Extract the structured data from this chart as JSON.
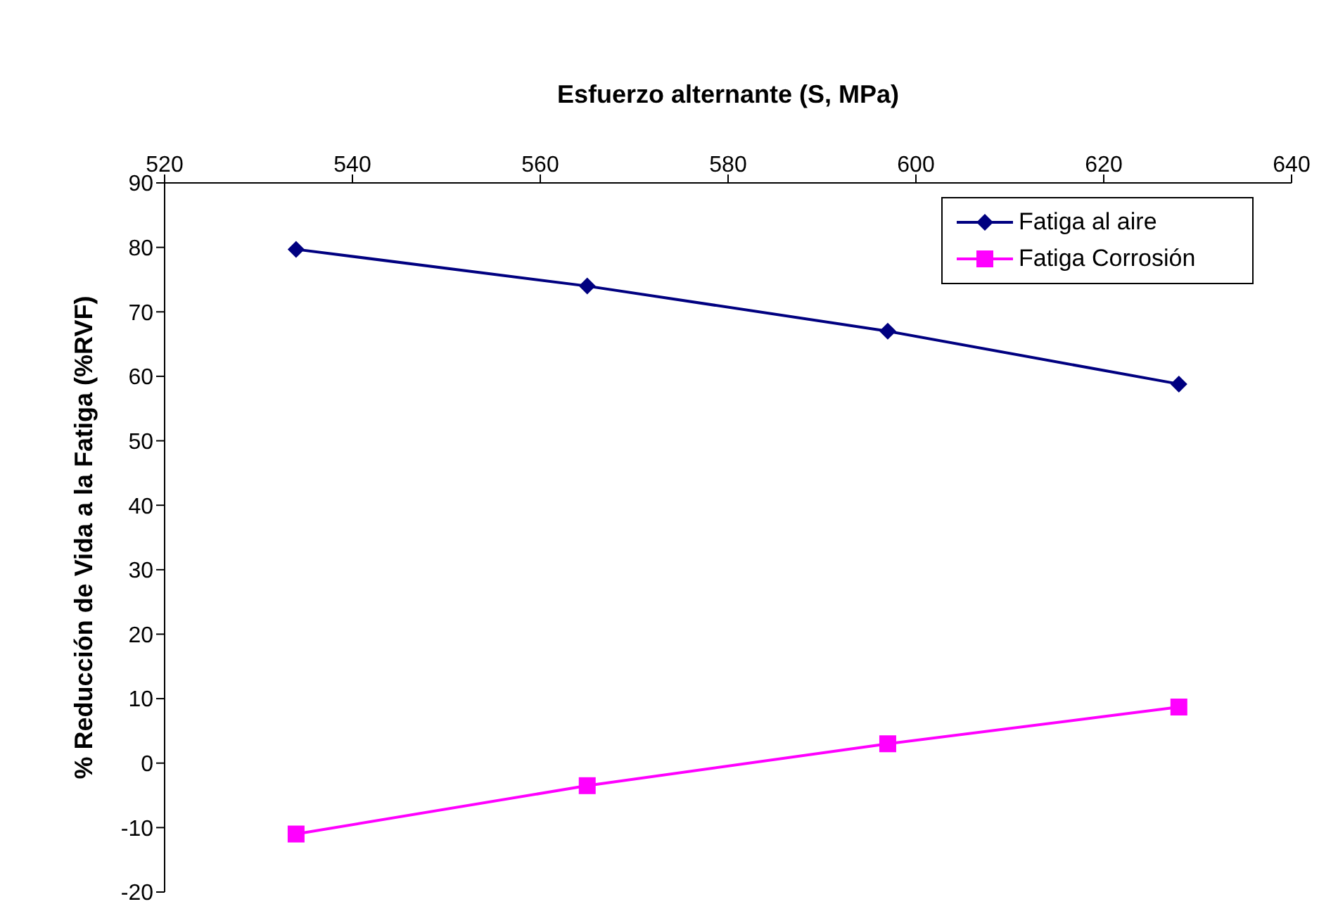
{
  "chart_data": {
    "type": "line",
    "xlabel": "Esfuerzo alternante (S, MPa)",
    "ylabel": "% Reducción de Vida a la Fatiga (%RVF)",
    "x": [
      534,
      565,
      597,
      628
    ],
    "series": [
      {
        "name": "Fatiga al aire",
        "color": "#000080",
        "marker": "diamond",
        "values": [
          79.7,
          74,
          67,
          58.8
        ]
      },
      {
        "name": "Fatiga Corrosión",
        "color": "#ff00ff",
        "marker": "square",
        "values": [
          -11,
          -3.5,
          3,
          8.7
        ]
      }
    ],
    "xlim": [
      520,
      640
    ],
    "xticks": [
      520,
      540,
      560,
      580,
      600,
      620,
      640
    ],
    "ylim": [
      -20,
      90
    ],
    "yticks": [
      -20,
      -10,
      0,
      10,
      20,
      30,
      40,
      50,
      60,
      70,
      80,
      90
    ],
    "grid": false,
    "legend": "top right",
    "line_style": "solid"
  }
}
